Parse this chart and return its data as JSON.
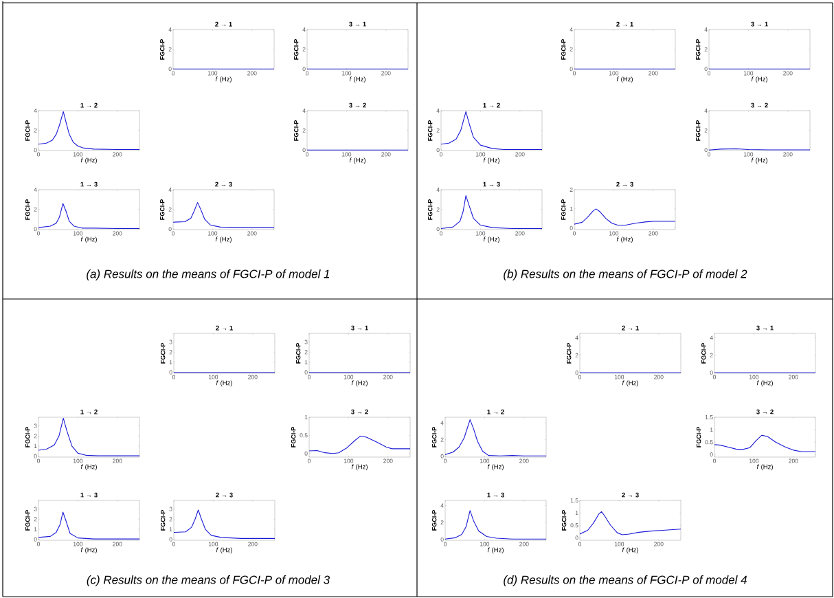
{
  "chart_data": [
    {
      "type": "line",
      "title": "2 → 1",
      "xlabel": "*f* (Hz)",
      "ylabel": "FGCI-P",
      "x": [
        0,
        256
      ],
      "values": [
        0,
        0
      ],
      "color": "#1a1ad6",
      "xlim": [
        0,
        256
      ],
      "ylim": [
        -0.05,
        4
      ],
      "xticks": [
        0,
        100,
        200
      ],
      "yticks": [
        0,
        2,
        4
      ]
    },
    {
      "type": "line",
      "title": "3 → 1",
      "xlabel": "*f* (Hz)",
      "ylabel": "FGCI-P",
      "x": [
        0,
        256
      ],
      "values": [
        0,
        0
      ],
      "color": "#1a1ad6",
      "xlim": [
        0,
        256
      ],
      "ylim": [
        -0.05,
        4
      ],
      "xticks": [
        0,
        100,
        200
      ],
      "yticks": [
        0,
        2,
        4
      ]
    },
    {
      "type": "line",
      "title": "1 → 2",
      "xlabel": "*f* (Hz)",
      "ylabel": "FGCI-P",
      "x": [
        0,
        20,
        35,
        45,
        53,
        63,
        70,
        78,
        88,
        100,
        115,
        140,
        200,
        256
      ],
      "values": [
        0.6,
        0.7,
        1.0,
        1.6,
        2.5,
        3.9,
        2.8,
        1.6,
        0.8,
        0.4,
        0.2,
        0.1,
        0.05,
        0.05
      ],
      "color": "#1a1ad6",
      "xlim": [
        0,
        256
      ],
      "ylim": [
        -0.05,
        4
      ],
      "xticks": [
        0,
        100,
        200
      ],
      "yticks": [
        0,
        2,
        4
      ]
    },
    {
      "type": "line",
      "title": "3 → 2",
      "xlabel": "*f* (Hz)",
      "ylabel": "FGCI-P",
      "x": [
        0,
        256
      ],
      "values": [
        0,
        0
      ],
      "color": "#1a1ad6",
      "xlim": [
        0,
        256
      ],
      "ylim": [
        -0.05,
        4
      ],
      "xticks": [
        0,
        100,
        200
      ],
      "yticks": [
        0,
        2,
        4
      ]
    },
    {
      "type": "line",
      "title": "1 → 3",
      "xlabel": "*f* (Hz)",
      "ylabel": "FGCI-P",
      "x": [
        0,
        30,
        45,
        53,
        62,
        70,
        78,
        90,
        110,
        140,
        200,
        256
      ],
      "values": [
        0.15,
        0.3,
        0.6,
        1.2,
        2.6,
        1.8,
        0.8,
        0.3,
        0.1,
        0.1,
        0.05,
        0.05
      ],
      "color": "#1a1ad6",
      "xlim": [
        0,
        256
      ],
      "ylim": [
        -0.05,
        4
      ],
      "xticks": [
        0,
        100,
        200
      ],
      "yticks": [
        0,
        2,
        4
      ]
    },
    {
      "type": "line",
      "title": "2 → 3",
      "xlabel": "*f* (Hz)",
      "ylabel": "FGCI-P",
      "x": [
        0,
        30,
        45,
        53,
        62,
        70,
        80,
        95,
        120,
        200,
        256
      ],
      "values": [
        0.7,
        0.75,
        1.1,
        1.8,
        2.7,
        2.0,
        1.0,
        0.4,
        0.2,
        0.15,
        0.15
      ],
      "color": "#1a1ad6",
      "xlim": [
        0,
        256
      ],
      "ylim": [
        -0.05,
        4
      ],
      "xticks": [
        0,
        100,
        200
      ],
      "yticks": [
        0,
        2,
        4
      ],
      "annotations": [
        "(a) Results on the means of FGCI-P of model 1"
      ]
    },
    {
      "type": "line",
      "title": "2 → 1",
      "xlabel": "*f* (Hz)",
      "ylabel": "FGCI-P",
      "x": [
        0,
        256
      ],
      "values": [
        0,
        0
      ],
      "color": "#1a1ad6",
      "xlim": [
        0,
        256
      ],
      "ylim": [
        -0.05,
        4
      ],
      "xticks": [
        0,
        100,
        200
      ],
      "yticks": [
        0,
        2,
        4
      ]
    },
    {
      "type": "line",
      "title": "3 → 1",
      "xlabel": "*f* (Hz)",
      "ylabel": "FGCI-P",
      "x": [
        0,
        256
      ],
      "values": [
        0,
        0
      ],
      "color": "#1a1ad6",
      "xlim": [
        0,
        256
      ],
      "ylim": [
        -0.05,
        4
      ],
      "xticks": [
        0,
        100,
        200
      ],
      "yticks": [
        0,
        2,
        4
      ]
    },
    {
      "type": "line",
      "title": "1 → 2",
      "xlabel": "*f* (Hz)",
      "ylabel": "FGCI-P",
      "x": [
        0,
        20,
        38,
        50,
        63,
        72,
        82,
        100,
        130,
        160,
        256
      ],
      "values": [
        0.6,
        0.7,
        1.1,
        2.0,
        3.9,
        2.6,
        1.3,
        0.5,
        0.15,
        0.05,
        0.05
      ],
      "color": "#1a1ad6",
      "xlim": [
        0,
        256
      ],
      "ylim": [
        -0.05,
        4
      ],
      "xticks": [
        0,
        100,
        200
      ],
      "yticks": [
        0,
        2,
        4
      ]
    },
    {
      "type": "line",
      "title": "3 → 2",
      "xlabel": "*f* (Hz)",
      "ylabel": "FGCI-P",
      "x": [
        0,
        30,
        70,
        100,
        150,
        256
      ],
      "values": [
        0,
        0.1,
        0.12,
        0.05,
        0.02,
        0.02
      ],
      "color": "#1a1ad6",
      "xlim": [
        0,
        256
      ],
      "ylim": [
        -0.05,
        4
      ],
      "xticks": [
        0,
        100,
        200
      ],
      "yticks": [
        0,
        2,
        4
      ]
    },
    {
      "type": "line",
      "title": "1 → 3",
      "xlabel": "*f* (Hz)",
      "ylabel": "FGCI-P",
      "x": [
        0,
        30,
        48,
        56,
        63,
        72,
        82,
        100,
        130,
        180,
        256
      ],
      "values": [
        0.05,
        0.2,
        0.8,
        1.8,
        3.4,
        2.3,
        1.1,
        0.4,
        0.15,
        0.05,
        0.05
      ],
      "color": "#1a1ad6",
      "xlim": [
        0,
        256
      ],
      "ylim": [
        -0.05,
        4
      ],
      "xticks": [
        0,
        100,
        200
      ],
      "yticks": [
        0,
        2,
        4
      ]
    },
    {
      "type": "line",
      "title": "2 → 3",
      "xlabel": "*f* (Hz)",
      "ylabel": "FGCI-P",
      "x": [
        0,
        20,
        35,
        48,
        55,
        65,
        80,
        95,
        110,
        130,
        155,
        180,
        200,
        256
      ],
      "values": [
        0.2,
        0.3,
        0.6,
        0.9,
        1.0,
        0.85,
        0.5,
        0.25,
        0.15,
        0.15,
        0.25,
        0.32,
        0.35,
        0.35
      ],
      "color": "#1a1ad6",
      "xlim": [
        0,
        256
      ],
      "ylim": [
        -0.08,
        2
      ],
      "xticks": [
        0,
        100,
        200
      ],
      "yticks": [
        0,
        1,
        2
      ],
      "annotations": [
        "(b) Results on the means of FGCI-P of model 2"
      ]
    },
    {
      "type": "line",
      "title": "2 → 1",
      "xlabel": "*f* (Hz)",
      "ylabel": "FGCI-P",
      "x": [
        0,
        256
      ],
      "values": [
        0,
        0
      ],
      "color": "#1a1ad6",
      "xlim": [
        0,
        256
      ],
      "ylim": [
        -0.08,
        3.85
      ],
      "xticks": [
        0,
        100,
        200
      ],
      "yticks": [
        0,
        1,
        2,
        3
      ]
    },
    {
      "type": "line",
      "title": "3 → 1",
      "xlabel": "*f* (Hz)",
      "ylabel": "FGCI-P",
      "x": [
        0,
        256
      ],
      "values": [
        0,
        0
      ],
      "color": "#1a1ad6",
      "xlim": [
        0,
        256
      ],
      "ylim": [
        -0.08,
        3.85
      ],
      "xticks": [
        0,
        100,
        200
      ],
      "yticks": [
        0,
        1,
        2,
        3
      ]
    },
    {
      "type": "line",
      "title": "1 → 2",
      "xlabel": "*f* (Hz)",
      "ylabel": "FGCI-P",
      "x": [
        0,
        20,
        40,
        52,
        63,
        72,
        85,
        100,
        120,
        150,
        256
      ],
      "values": [
        0.6,
        0.7,
        1.1,
        2.0,
        3.75,
        2.5,
        1.0,
        0.3,
        0.1,
        0.05,
        0.05
      ],
      "color": "#1a1ad6",
      "xlim": [
        0,
        256
      ],
      "ylim": [
        -0.08,
        3.85
      ],
      "xticks": [
        0,
        100,
        200
      ],
      "yticks": [
        0,
        1,
        2,
        3
      ]
    },
    {
      "type": "line",
      "title": "3 → 2",
      "xlabel": "*f* (Hz)",
      "ylabel": "FGCI-P",
      "x": [
        0,
        20,
        40,
        60,
        75,
        95,
        115,
        130,
        145,
        170,
        195,
        210,
        256
      ],
      "values": [
        0.07,
        0.08,
        0.02,
        0.0,
        0.02,
        0.15,
        0.35,
        0.48,
        0.45,
        0.32,
        0.18,
        0.13,
        0.13
      ],
      "color": "#1a1ad6",
      "xlim": [
        0,
        256
      ],
      "ylim": [
        -0.1,
        1
      ],
      "xticks": [
        0,
        100,
        200
      ],
      "yticks": [
        0,
        0.5,
        1
      ]
    },
    {
      "type": "line",
      "title": "1 → 3",
      "xlabel": "*f* (Hz)",
      "ylabel": "FGCI-P",
      "x": [
        0,
        30,
        45,
        55,
        62,
        70,
        80,
        100,
        140,
        256
      ],
      "values": [
        0.2,
        0.3,
        0.7,
        1.5,
        2.7,
        1.8,
        0.6,
        0.15,
        0.05,
        0.05
      ],
      "color": "#1a1ad6",
      "xlim": [
        0,
        256
      ],
      "ylim": [
        -0.08,
        3.85
      ],
      "xticks": [
        0,
        100,
        200
      ],
      "yticks": [
        0,
        1,
        2,
        3
      ]
    },
    {
      "type": "line",
      "title": "2 → 3",
      "xlabel": "*f* (Hz)",
      "ylabel": "FGCI-P",
      "x": [
        0,
        30,
        45,
        54,
        62,
        70,
        80,
        95,
        120,
        170,
        256
      ],
      "values": [
        0.7,
        0.75,
        1.2,
        2.0,
        2.9,
        2.0,
        1.0,
        0.4,
        0.2,
        0.1,
        0.1
      ],
      "color": "#1a1ad6",
      "xlim": [
        0,
        256
      ],
      "ylim": [
        -0.08,
        3.85
      ],
      "xticks": [
        0,
        100,
        200
      ],
      "yticks": [
        0,
        1,
        2,
        3
      ],
      "annotations": [
        "(c) Results on the means of FGCI-P of model 3"
      ]
    },
    {
      "type": "line",
      "title": "2 → 1",
      "xlabel": "*f* (Hz)",
      "ylabel": "FGCI-P",
      "x": [
        0,
        256
      ],
      "values": [
        0,
        0
      ],
      "color": "#1a1ad6",
      "xlim": [
        0,
        256
      ],
      "ylim": [
        -0.06,
        4.5
      ],
      "xticks": [
        0,
        100,
        200
      ],
      "yticks": [
        0,
        2,
        4
      ]
    },
    {
      "type": "line",
      "title": "3 → 1",
      "xlabel": "*f* (Hz)",
      "ylabel": "FGCI-P",
      "x": [
        0,
        256
      ],
      "values": [
        0,
        0
      ],
      "color": "#1a1ad6",
      "xlim": [
        0,
        256
      ],
      "ylim": [
        -0.06,
        4.5
      ],
      "xticks": [
        0,
        100,
        200
      ],
      "yticks": [
        0,
        2,
        4
      ]
    },
    {
      "type": "line",
      "title": "1 → 2",
      "xlabel": "*f* (Hz)",
      "ylabel": "FGCI-P",
      "x": [
        0,
        20,
        35,
        48,
        57,
        63,
        72,
        82,
        95,
        110,
        140,
        170,
        200,
        256
      ],
      "values": [
        0.2,
        0.5,
        1.1,
        2.2,
        3.5,
        4.4,
        3.3,
        1.8,
        0.6,
        0.1,
        0.05,
        0.1,
        0.05,
        0.05
      ],
      "color": "#1a1ad6",
      "xlim": [
        0,
        256
      ],
      "ylim": [
        -0.1,
        4.7
      ],
      "xticks": [
        0,
        100,
        200
      ],
      "yticks": [
        0,
        2,
        4
      ]
    },
    {
      "type": "line",
      "title": "3 → 2",
      "xlabel": "*f* (Hz)",
      "ylabel": "FGCI-P",
      "x": [
        0,
        15,
        35,
        55,
        70,
        90,
        105,
        120,
        135,
        155,
        180,
        200,
        220,
        256
      ],
      "values": [
        0.4,
        0.38,
        0.3,
        0.22,
        0.2,
        0.28,
        0.55,
        0.78,
        0.72,
        0.5,
        0.3,
        0.18,
        0.12,
        0.12
      ],
      "color": "#1a1ad6",
      "xlim": [
        0,
        256
      ],
      "ylim": [
        -0.1,
        1.5
      ],
      "xticks": [
        0,
        100,
        200
      ],
      "yticks": [
        0,
        0.5,
        1,
        1.5
      ]
    },
    {
      "type": "line",
      "title": "1 → 3",
      "xlabel": "*f* (Hz)",
      "ylabel": "FGCI-P",
      "x": [
        0,
        25,
        42,
        53,
        63,
        72,
        85,
        105,
        130,
        170,
        256
      ],
      "values": [
        0.05,
        0.2,
        0.6,
        1.5,
        3.4,
        2.2,
        1.0,
        0.35,
        0.15,
        0.05,
        0.05
      ],
      "color": "#1a1ad6",
      "xlim": [
        0,
        256
      ],
      "ylim": [
        -0.09,
        4.6
      ],
      "xticks": [
        0,
        100,
        200
      ],
      "yticks": [
        0,
        2,
        4
      ]
    },
    {
      "type": "line",
      "title": "2 → 3",
      "xlabel": "*f* (Hz)",
      "ylabel": "FGCI-P",
      "x": [
        0,
        20,
        35,
        48,
        55,
        62,
        78,
        95,
        108,
        125,
        150,
        180,
        210,
        256
      ],
      "values": [
        0.15,
        0.3,
        0.6,
        0.95,
        1.05,
        0.9,
        0.5,
        0.2,
        0.12,
        0.15,
        0.22,
        0.27,
        0.3,
        0.35
      ],
      "color": "#1a1ad6",
      "xlim": [
        0,
        256
      ],
      "ylim": [
        -0.1,
        1.5
      ],
      "xticks": [
        0,
        100,
        200
      ],
      "yticks": [
        0,
        0.5,
        1,
        1.5
      ],
      "annotations": [
        "(d) Results on the means of FGCI-P of model 4"
      ]
    }
  ]
}
